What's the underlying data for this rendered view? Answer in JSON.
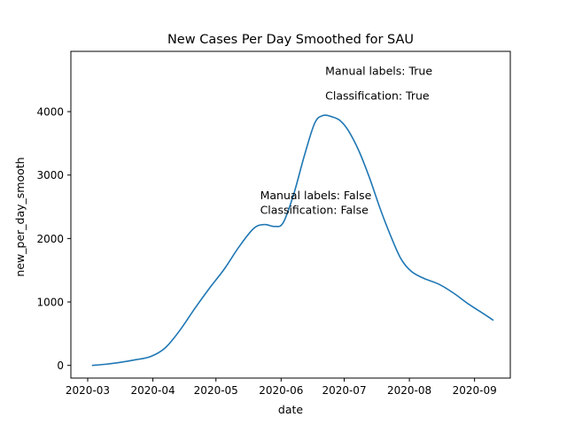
{
  "chart_data": {
    "type": "line",
    "title": "New Cases Per Day Smoothed for SAU",
    "xlabel": "date",
    "ylabel": "new_per_day_smooth",
    "x_ticks": [
      "2020-03",
      "2020-04",
      "2020-05",
      "2020-06",
      "2020-07",
      "2020-08",
      "2020-09"
    ],
    "y_ticks": [
      0,
      1000,
      2000,
      3000,
      4000
    ],
    "xlim": [
      "2020-02-22",
      "2020-09-18"
    ],
    "ylim": [
      -200,
      4950
    ],
    "grid": false,
    "line_color": "#1f77b4",
    "series": [
      {
        "x": [
          "2020-03-03",
          "2020-03-10",
          "2020-03-17",
          "2020-03-24",
          "2020-03-31",
          "2020-04-07",
          "2020-04-14",
          "2020-04-21",
          "2020-04-28",
          "2020-05-05",
          "2020-05-12",
          "2020-05-19",
          "2020-05-24",
          "2020-05-29",
          "2020-06-02",
          "2020-06-07",
          "2020-06-12",
          "2020-06-17",
          "2020-06-21",
          "2020-06-25",
          "2020-06-29",
          "2020-07-03",
          "2020-07-08",
          "2020-07-13",
          "2020-07-18",
          "2020-07-23",
          "2020-07-28",
          "2020-08-02",
          "2020-08-08",
          "2020-08-15",
          "2020-08-22",
          "2020-08-29",
          "2020-09-05",
          "2020-09-10"
        ],
        "y": [
          0,
          20,
          50,
          90,
          140,
          280,
          560,
          900,
          1220,
          1520,
          1870,
          2160,
          2220,
          2190,
          2250,
          2700,
          3300,
          3820,
          3940,
          3920,
          3860,
          3700,
          3380,
          2960,
          2480,
          2050,
          1680,
          1480,
          1370,
          1280,
          1140,
          970,
          820,
          710
        ]
      }
    ],
    "annotations": [
      {
        "text": "Manual labels: True",
        "x": "2020-06-22",
        "y": 4580
      },
      {
        "text": "Classification: True",
        "x": "2020-06-22",
        "y": 4190
      },
      {
        "text": "Manual labels: False",
        "x": "2020-05-22",
        "y": 2620
      },
      {
        "text": "Classification: False",
        "x": "2020-05-22",
        "y": 2390
      }
    ]
  }
}
